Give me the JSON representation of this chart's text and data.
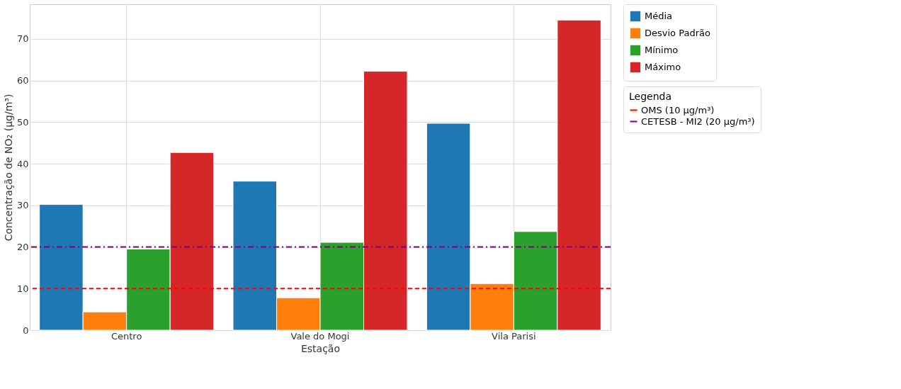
{
  "chart_data": {
    "type": "bar",
    "xlabel": "Estação",
    "ylabel": "Concentração de NO₂ (μg/m³)",
    "legend_title": "Legenda",
    "categories": [
      "Centro",
      "Vale do Mogi",
      "Vila Parisi"
    ],
    "series": [
      {
        "name": "Média",
        "color": "#1f77b4",
        "values": [
          30.2,
          35.8,
          49.7
        ]
      },
      {
        "name": "Desvio Padrão",
        "color": "#ff7f0e",
        "values": [
          4.4,
          7.8,
          11.2
        ]
      },
      {
        "name": "Mínimo",
        "color": "#2ca02c",
        "values": [
          19.5,
          21.1,
          23.7
        ]
      },
      {
        "name": "Máximo",
        "color": "#d62728",
        "values": [
          42.7,
          62.2,
          74.5
        ]
      }
    ],
    "ref_lines": [
      {
        "axis": "y",
        "value": 10,
        "label": "OMS (10 μg/m³)",
        "color": "#ff0000",
        "line_style": "dashed"
      },
      {
        "axis": "y",
        "value": 20,
        "label": "CETESB - MI2 (20 μg/m³)",
        "color": "#800080",
        "line_style": "dashdot"
      }
    ],
    "ylim": [
      0,
      78.3
    ],
    "yticks": [
      0,
      10,
      20,
      30,
      40,
      50,
      60,
      70
    ],
    "grid": true,
    "legend": "top right"
  }
}
